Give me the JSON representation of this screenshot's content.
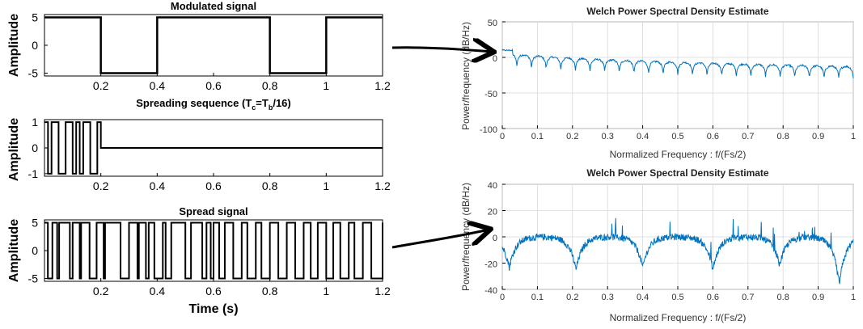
{
  "colors": {
    "signal": "#000000",
    "psd": "#0072bd",
    "grid": "#d8d8d8",
    "arrow": "#000000"
  },
  "chart_data": [
    {
      "id": "modulated",
      "type": "line",
      "title": "Modulated signal",
      "ylabel": "Amplitude",
      "xlim": [
        0,
        1.2
      ],
      "ylim": [
        -5.5,
        5.5
      ],
      "xticks": [
        0.2,
        0.4,
        0.6,
        0.8,
        1,
        1.2
      ],
      "xtick_labels": [
        "0.2",
        "0.4",
        "0.6",
        "0.8",
        "1",
        "1.2"
      ],
      "yticks": [
        5,
        0,
        -5
      ],
      "ytick_labels": [
        "5",
        "0",
        "-5"
      ],
      "grid": false,
      "steps": [
        [
          0,
          5
        ],
        [
          0.2,
          -5
        ],
        [
          0.4,
          5
        ],
        [
          0.8,
          -5
        ],
        [
          1.0,
          5
        ],
        [
          1.2,
          5
        ]
      ]
    },
    {
      "id": "spreading",
      "type": "line",
      "title": "Spreading sequence (Tᴄ=T♭/16)",
      "title_main": "Spreading sequence (T",
      "title_sub1": "c",
      "title_mid": "=T",
      "title_sub2": "b",
      "title_end": "/16)",
      "ylabel": "Amplitude",
      "xlim": [
        0,
        1.2
      ],
      "ylim": [
        -1.1,
        1.1
      ],
      "xticks": [
        0.2,
        0.4,
        0.6,
        0.8,
        1,
        1.2
      ],
      "xtick_labels": [
        "0.2",
        "0.4",
        "0.6",
        "0.8",
        "1",
        "1.2"
      ],
      "yticks": [
        1,
        0,
        -1
      ],
      "ytick_labels": [
        "1",
        "0",
        "-1"
      ],
      "grid": false,
      "chips": [
        1,
        -1,
        1,
        1,
        -1,
        -1,
        1,
        1,
        -1,
        1,
        -1,
        1,
        1,
        -1,
        -1,
        1
      ],
      "chip_duration": 0.0125,
      "tail": [
        [
          0.2,
          0
        ],
        [
          1.2,
          0
        ]
      ]
    },
    {
      "id": "spread",
      "type": "line",
      "title": "Spread signal",
      "ylabel": "Amplitude",
      "xlabel": "Time (s)",
      "xlim": [
        0,
        1.2
      ],
      "ylim": [
        -5.5,
        5.5
      ],
      "xticks": [
        0.2,
        0.4,
        0.6,
        0.8,
        1,
        1.2
      ],
      "xtick_labels": [
        "0.2",
        "0.4",
        "0.6",
        "0.8",
        "1",
        "1.2"
      ],
      "yticks": [
        5,
        0,
        -5
      ],
      "ytick_labels": [
        "5",
        "0",
        "-5"
      ],
      "grid": false,
      "transitions": [
        0,
        0.012,
        0.028,
        0.045,
        0.052,
        0.09,
        0.1,
        0.125,
        0.13,
        0.16,
        0.185,
        0.21,
        0.215,
        0.27,
        0.3,
        0.33,
        0.335,
        0.36,
        0.37,
        0.39,
        0.42,
        0.43,
        0.45,
        0.5,
        0.52,
        0.56,
        0.575,
        0.59,
        0.6,
        0.62,
        0.64,
        0.67,
        0.7,
        0.72,
        0.75,
        0.77,
        0.8,
        0.83,
        0.86,
        0.89,
        0.92,
        0.945,
        0.97,
        1.0,
        1.025,
        1.05,
        1.08,
        1.1,
        1.13,
        1.16,
        1.2
      ],
      "start_level": 5
    },
    {
      "id": "psd_modulated",
      "type": "line",
      "title": "Welch Power Spectral Density Estimate",
      "ylabel": "Power/frequency (dB/Hz)",
      "xlabel": "Normalized Frequency : f/(Fs/2)",
      "xlim": [
        0,
        1
      ],
      "ylim": [
        -100,
        50
      ],
      "xticks": [
        0,
        0.1,
        0.2,
        0.3,
        0.4,
        0.5,
        0.6,
        0.7,
        0.8,
        0.9,
        1
      ],
      "xtick_labels": [
        "0",
        "0.1",
        "0.2",
        "0.3",
        "0.4",
        "0.5",
        "0.6",
        "0.7",
        "0.8",
        "0.9",
        "1"
      ],
      "yticks": [
        50,
        0,
        -50,
        -100
      ],
      "ytick_labels": [
        "50",
        "0",
        "-50",
        "-100"
      ],
      "grid": true,
      "peak_start": 10,
      "peak_end": -13,
      "null_depth": -28,
      "lobe_count": 24,
      "noise": 2.5
    },
    {
      "id": "psd_spread",
      "type": "line",
      "title": "Welch Power Spectral Density Estimate",
      "ylabel": "Power/frequency (dB/Hz)",
      "xlabel": "Normalized Frequency : f/(Fs/2)",
      "xlim": [
        0,
        1
      ],
      "ylim": [
        -40,
        40
      ],
      "xticks": [
        0,
        0.1,
        0.2,
        0.3,
        0.4,
        0.5,
        0.6,
        0.7,
        0.8,
        0.9,
        1
      ],
      "xtick_labels": [
        "0",
        "0.1",
        "0.2",
        "0.3",
        "0.4",
        "0.5",
        "0.6",
        "0.7",
        "0.8",
        "0.9",
        "1"
      ],
      "yticks": [
        40,
        20,
        0,
        -20,
        -40
      ],
      "ytick_labels": [
        "40",
        "20",
        "0",
        "-20",
        "-40"
      ],
      "grid": true,
      "nulls": [
        0.02,
        0.21,
        0.4,
        0.6,
        0.79,
        0.96
      ],
      "null_values": [
        -22,
        -24,
        -22,
        -24,
        -20,
        -36
      ],
      "peak_level": 4,
      "noise": 2.5
    }
  ]
}
